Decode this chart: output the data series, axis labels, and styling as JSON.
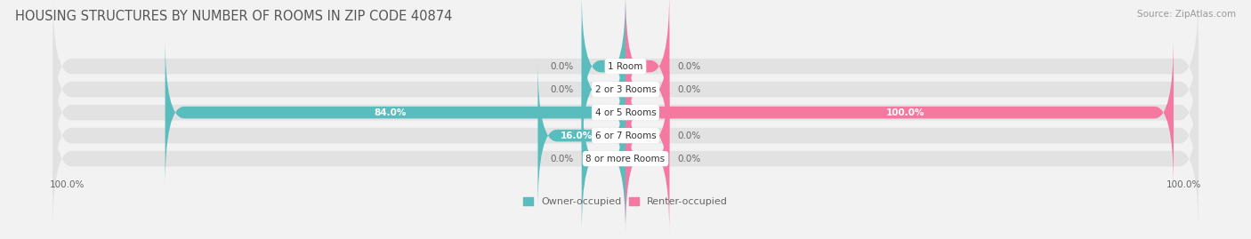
{
  "title": "HOUSING STRUCTURES BY NUMBER OF ROOMS IN ZIP CODE 40874",
  "source": "Source: ZipAtlas.com",
  "categories": [
    "1 Room",
    "2 or 3 Rooms",
    "4 or 5 Rooms",
    "6 or 7 Rooms",
    "8 or more Rooms"
  ],
  "owner_values": [
    0.0,
    0.0,
    84.0,
    16.0,
    0.0
  ],
  "renter_values": [
    0.0,
    0.0,
    100.0,
    0.0,
    0.0
  ],
  "owner_color": "#5bbcbe",
  "renter_color": "#f478a0",
  "bg_color": "#f2f2f2",
  "bar_bg_color": "#e2e2e2",
  "title_fontsize": 10.5,
  "label_fontsize": 7.5,
  "cat_fontsize": 7.5,
  "source_fontsize": 7.5,
  "axis_label_left": "100.0%",
  "axis_label_right": "100.0%",
  "max_val": 100.0,
  "stub_val": 8.0
}
